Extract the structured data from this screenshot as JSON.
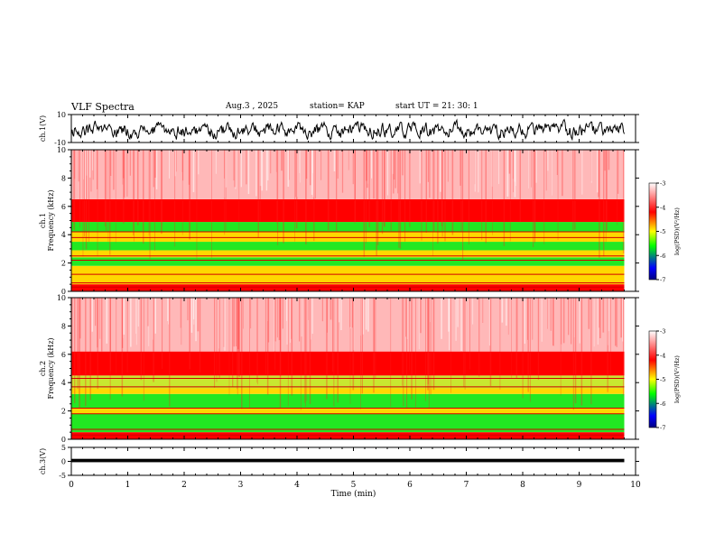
{
  "header": {
    "title": "VLF Spectra",
    "date": "Aug.3 , 2025",
    "station": "station= KAP",
    "start": "start UT = 21: 30: 1"
  },
  "colors": {
    "trace": "#000000",
    "spectrogram_high": "#ff0000",
    "spectrogram_mid": "#ffe000",
    "spectrogram_low": "#00e000"
  },
  "chart_data": [
    {
      "type": "line",
      "name": "ch1-waveform",
      "ylabel": "ch.1(V)",
      "ylim": [
        -10,
        10
      ],
      "yticks": [
        "10",
        "-10"
      ],
      "xlim": [
        0,
        9.8
      ],
      "description_values": {
        "mean": -1.5,
        "amplitude": 5
      }
    },
    {
      "type": "heatmap",
      "name": "ch1-spectrogram",
      "ylabel": "ch.1\nFrequency (kHz)",
      "ylim": [
        0,
        10
      ],
      "yticks": [
        "0",
        "2",
        "4",
        "6",
        "8",
        "10"
      ],
      "xlim": [
        0,
        9.8
      ],
      "bands": [
        {
          "from": 0.0,
          "to": 0.5,
          "level": "red"
        },
        {
          "from": 0.5,
          "to": 1.8,
          "level": "yellow"
        },
        {
          "from": 1.8,
          "to": 2.4,
          "level": "green"
        },
        {
          "from": 2.4,
          "to": 2.9,
          "level": "yellow"
        },
        {
          "from": 2.9,
          "to": 3.5,
          "level": "green"
        },
        {
          "from": 3.5,
          "to": 4.2,
          "level": "yellow"
        },
        {
          "from": 4.2,
          "to": 4.9,
          "level": "green"
        },
        {
          "from": 4.9,
          "to": 6.5,
          "level": "red"
        },
        {
          "from": 6.5,
          "to": 10.0,
          "level": "pink"
        }
      ],
      "lines_khz": [
        0.3,
        0.6,
        1.2,
        2.2,
        2.5,
        3.8,
        4.2
      ],
      "colorbar": {
        "label": "log(PSD)(V²/Hz)",
        "range": [
          -7,
          -3
        ],
        "ticks": [
          "-3",
          "-4",
          "-5",
          "-6",
          "-7"
        ]
      }
    },
    {
      "type": "heatmap",
      "name": "ch2-spectrogram",
      "ylabel": "ch.2\nFrequency (kHz)",
      "ylim": [
        0,
        10
      ],
      "yticks": [
        "0",
        "2",
        "4",
        "6",
        "8",
        "10"
      ],
      "xlim": [
        0,
        9.8
      ],
      "bands": [
        {
          "from": 0.0,
          "to": 0.5,
          "level": "red"
        },
        {
          "from": 0.5,
          "to": 1.8,
          "level": "green"
        },
        {
          "from": 1.8,
          "to": 2.2,
          "level": "yellow"
        },
        {
          "from": 2.2,
          "to": 3.2,
          "level": "green"
        },
        {
          "from": 3.2,
          "to": 3.6,
          "level": "yellow"
        },
        {
          "from": 3.6,
          "to": 4.5,
          "level": "yellowgreen"
        },
        {
          "from": 4.5,
          "to": 6.2,
          "level": "red"
        },
        {
          "from": 6.2,
          "to": 10.0,
          "level": "pink"
        }
      ],
      "lines_khz": [
        0.3,
        0.7,
        1.8,
        2.2,
        3.7,
        4.3
      ],
      "colorbar": {
        "label": "log(PSD)(V²/Hz)",
        "range": [
          -7,
          -3
        ],
        "ticks": [
          "-3",
          "-4",
          "-5",
          "-6",
          "-7"
        ]
      }
    },
    {
      "type": "line",
      "name": "ch3-waveform",
      "ylabel": "ch.3(V)",
      "ylim": [
        -5,
        5
      ],
      "yticks": [
        "5",
        "0",
        "-5"
      ],
      "xlim": [
        0,
        9.8
      ],
      "description_values": {
        "mean": 0.3,
        "amplitude": 0.6
      }
    }
  ],
  "xaxis": {
    "label": "Time (min)",
    "ticks": [
      "0",
      "1",
      "2",
      "3",
      "4",
      "5",
      "6",
      "7",
      "8",
      "9",
      "10"
    ],
    "range": [
      0,
      10
    ]
  }
}
